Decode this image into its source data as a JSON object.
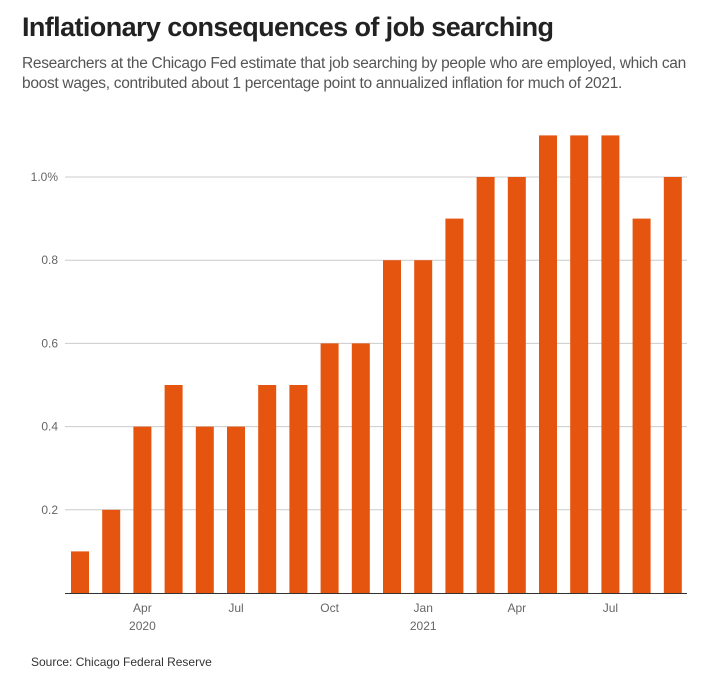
{
  "title": "Inflationary consequences of job searching",
  "subtitle": "Researchers at the Chicago Fed estimate that job searching by people who are employed, which can boost wages,  contributed about 1 percentage point to annualized inflation for much of 2021.",
  "source": "Source: Chicago Federal Reserve",
  "colors": {
    "bar": "#e5550f",
    "grid": "#cccccc",
    "axis": "#333333"
  },
  "chart_data": {
    "type": "bar",
    "title": "Inflationary consequences of job searching",
    "xlabel": "",
    "ylabel": "",
    "ylim": [
      0,
      1.1
    ],
    "grid": true,
    "categories": [
      "Feb 2020",
      "Mar 2020",
      "Apr 2020",
      "May 2020",
      "Jun 2020",
      "Jul 2020",
      "Aug 2020",
      "Sep 2020",
      "Oct 2020",
      "Nov 2020",
      "Dec 2020",
      "Jan 2021",
      "Feb 2021",
      "Mar 2021",
      "Apr 2021",
      "May 2021",
      "Jun 2021",
      "Jul 2021",
      "Aug 2021",
      "Sep 2021"
    ],
    "values": [
      0.1,
      0.2,
      0.4,
      0.5,
      0.4,
      0.4,
      0.5,
      0.5,
      0.6,
      0.6,
      0.8,
      0.8,
      0.9,
      1.0,
      1.0,
      1.1,
      1.1,
      1.1,
      0.9,
      1.0
    ],
    "y_ticks": [
      {
        "value": 0.2,
        "label": "0.2"
      },
      {
        "value": 0.4,
        "label": "0.4"
      },
      {
        "value": 0.6,
        "label": "0.6"
      },
      {
        "value": 0.8,
        "label": "0.8"
      },
      {
        "value": 1.0,
        "label": "1.0%"
      }
    ],
    "x_ticks": [
      {
        "index": 2,
        "label": "Apr",
        "sublabel": "2020"
      },
      {
        "index": 5,
        "label": "Jul",
        "sublabel": ""
      },
      {
        "index": 8,
        "label": "Oct",
        "sublabel": ""
      },
      {
        "index": 11,
        "label": "Jan",
        "sublabel": "2021"
      },
      {
        "index": 14,
        "label": "Apr",
        "sublabel": ""
      },
      {
        "index": 17,
        "label": "Jul",
        "sublabel": ""
      }
    ]
  }
}
